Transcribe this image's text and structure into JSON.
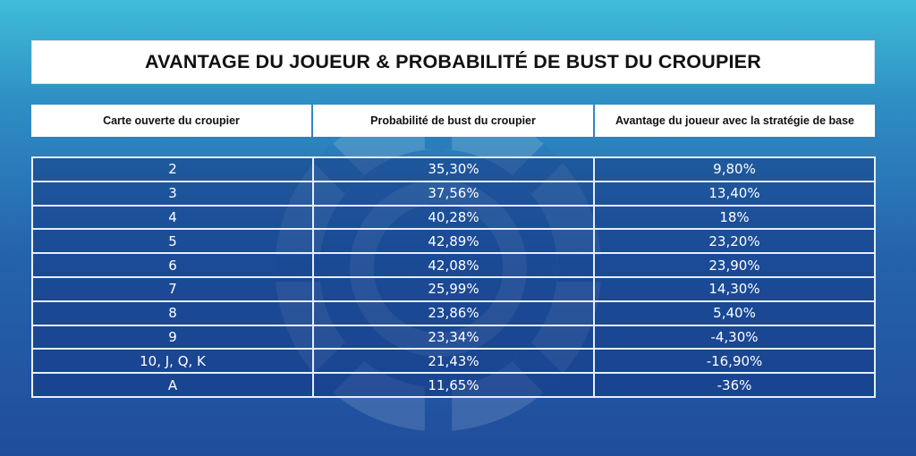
{
  "title": "AVANTAGE DU JOUEUR & PROBABILITÉ DE BUST DU CROUPIER",
  "headers": [
    "Carte ouverte du croupier",
    "Probabilité de bust du croupier",
    "Avantage du joueur avec la stratégie de base"
  ],
  "rows": [
    [
      "2",
      "35,30%",
      "9,80%"
    ],
    [
      "3",
      "37,56%",
      "13,40%"
    ],
    [
      "4",
      "40,28%",
      "18%"
    ],
    [
      "5",
      "42,89%",
      "23,20%"
    ],
    [
      "6",
      "42,08%",
      "23,90%"
    ],
    [
      "7",
      "25,99%",
      "14,30%"
    ],
    [
      "8",
      "23,86%",
      "5,40%"
    ],
    [
      "9",
      "23,34%",
      "-4,30%"
    ],
    [
      "10, J, Q, K",
      "21,43%",
      "-16,90%"
    ],
    [
      "A",
      "11,65%",
      "-36%"
    ]
  ],
  "colors": {
    "background_top": "#3fbdd8",
    "background_bottom": "#1f4d9c",
    "header_bg": "#ffffff",
    "cell_text": "#ffffff",
    "grid_line": "#e6eef8"
  },
  "icons": {
    "watermark": "casino-chip-icon"
  }
}
